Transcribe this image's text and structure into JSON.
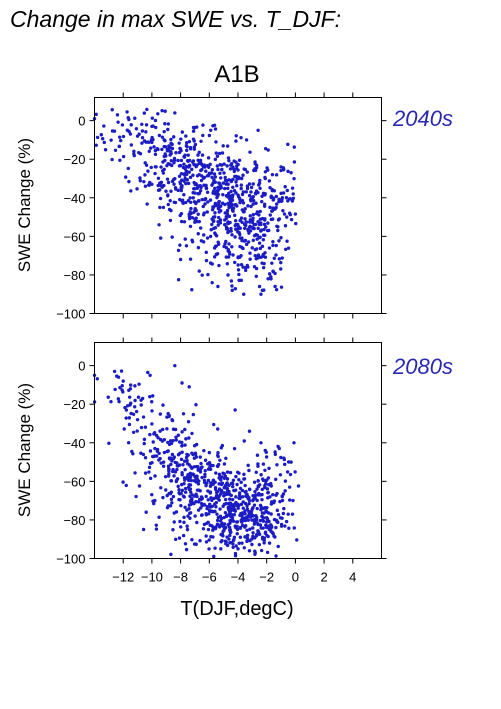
{
  "page": {
    "title": "Change in max SWE vs. T_DJF:",
    "scenario": "A1B",
    "xlabel": "T(DJF,degC)",
    "ylabel": "SWE Change (%)"
  },
  "colors": {
    "points": "#1c1cc4",
    "period_label": "#2828b4",
    "axis": "#000000"
  },
  "chart_data": [
    {
      "type": "scatter",
      "period": "2040s",
      "xlim": [
        -14,
        6
      ],
      "ylim": [
        -100,
        12
      ],
      "xticks": [
        -12,
        -10,
        -8,
        -6,
        -4,
        -2,
        0,
        2,
        4
      ],
      "yticks": [
        0,
        -20,
        -40,
        -60,
        -80,
        -100
      ],
      "ytick_labels": [
        "0",
        "−20",
        "−40",
        "−60",
        "−80",
        "−100"
      ],
      "grid": false,
      "cloud": [
        {
          "x": -11.2,
          "y": -8,
          "sx": 1.3,
          "sy": 9,
          "n": 55
        },
        {
          "x": -9.0,
          "y": -20,
          "sx": 1.3,
          "sy": 11,
          "n": 130
        },
        {
          "x": -6.8,
          "y": -35,
          "sx": 1.3,
          "sy": 14,
          "n": 210
        },
        {
          "x": -4.5,
          "y": -47,
          "sx": 1.2,
          "sy": 16,
          "n": 260
        },
        {
          "x": -2.6,
          "y": -55,
          "sx": 1.1,
          "sy": 17,
          "n": 170
        },
        {
          "x": -1.2,
          "y": -38,
          "sx": 0.8,
          "sy": 12,
          "n": 35
        }
      ],
      "points": [
        [
          -14.0,
          1
        ],
        [
          -12.4,
          3
        ],
        [
          -10.0,
          -3
        ],
        [
          -8.4,
          4
        ],
        [
          -7.6,
          -13
        ],
        [
          -5.9,
          -5
        ],
        [
          -3.4,
          -10
        ],
        [
          -2.6,
          -5
        ],
        [
          -2.1,
          -30
        ],
        [
          -1.6,
          -28
        ],
        [
          -1.0,
          -24
        ],
        [
          -0.3,
          -27
        ],
        [
          -0.2,
          -35
        ],
        [
          -0.4,
          -48
        ],
        [
          -0.6,
          -50
        ],
        [
          -8.0,
          -72
        ],
        [
          -6.7,
          -78
        ],
        [
          -5.8,
          -84
        ],
        [
          -5.4,
          -86
        ],
        [
          -4.4,
          -88
        ],
        [
          -3.6,
          -90
        ],
        [
          -2.5,
          -86
        ],
        [
          -2.3,
          -88
        ],
        [
          -2.4,
          -90
        ],
        [
          -1.9,
          -82
        ],
        [
          -9.5,
          -54
        ],
        [
          -10.0,
          -33
        ],
        [
          -9.2,
          -45
        ],
        [
          -7.2,
          -62
        ],
        [
          -2.8,
          -70
        ]
      ]
    },
    {
      "type": "scatter",
      "period": "2080s",
      "xlim": [
        -14,
        6
      ],
      "ylim": [
        -100,
        12
      ],
      "xticks": [
        -12,
        -10,
        -8,
        -6,
        -4,
        -2,
        0,
        2,
        4
      ],
      "xtick_labels": [
        "−12",
        "−10",
        "−8",
        "−6",
        "−4",
        "−2",
        "0",
        "2",
        "4"
      ],
      "yticks": [
        0,
        -20,
        -40,
        -60,
        -80,
        -100
      ],
      "ytick_labels": [
        "0",
        "−20",
        "−40",
        "−60",
        "−80",
        "−100"
      ],
      "grid": false,
      "cloud": [
        {
          "x": -11.3,
          "y": -20,
          "sx": 1.2,
          "sy": 9,
          "n": 45
        },
        {
          "x": -9.1,
          "y": -45,
          "sx": 1.3,
          "sy": 12,
          "n": 120
        },
        {
          "x": -6.9,
          "y": -64,
          "sx": 1.3,
          "sy": 12,
          "n": 210
        },
        {
          "x": -4.6,
          "y": -74,
          "sx": 1.2,
          "sy": 12,
          "n": 270
        },
        {
          "x": -2.7,
          "y": -80,
          "sx": 1.0,
          "sy": 10,
          "n": 170
        },
        {
          "x": -1.2,
          "y": -58,
          "sx": 0.8,
          "sy": 12,
          "n": 35
        }
      ],
      "points": [
        [
          -14.0,
          -5
        ],
        [
          -12.6,
          -3
        ],
        [
          -12.0,
          -8
        ],
        [
          -11.5,
          -12
        ],
        [
          -8.4,
          0
        ],
        [
          -7.9,
          -9
        ],
        [
          -7.4,
          -11
        ],
        [
          -4.2,
          -23
        ],
        [
          -3.2,
          -34
        ],
        [
          -2.4,
          -40
        ],
        [
          -2.1,
          -44
        ],
        [
          -1.4,
          -46
        ],
        [
          -0.8,
          -48
        ],
        [
          -0.1,
          -40
        ],
        [
          -0.3,
          -50
        ],
        [
          -0.4,
          -63
        ],
        [
          -0.5,
          -77
        ],
        [
          -0.2,
          -77
        ],
        [
          -10.4,
          -76
        ],
        [
          -2.8,
          -97
        ],
        [
          -3.2,
          -96
        ],
        [
          -4.0,
          -95
        ],
        [
          -5.2,
          -95
        ],
        [
          -1.8,
          -92
        ],
        [
          -11.0,
          -28
        ]
      ]
    }
  ]
}
